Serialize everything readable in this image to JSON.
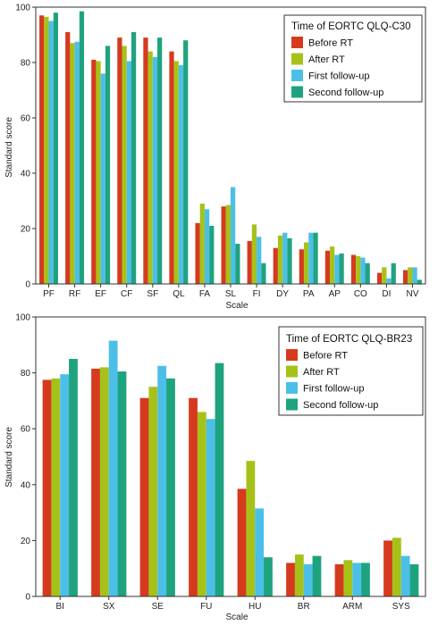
{
  "colors": {
    "before": "#d63a1e",
    "after": "#a6c21a",
    "first": "#4cbfe8",
    "second": "#1fa37f"
  },
  "chart_data": [
    {
      "type": "bar",
      "xlabel": "Scale",
      "ylabel": "Standard score",
      "ylim": [
        0,
        100
      ],
      "yticks": [
        0,
        20,
        40,
        60,
        80,
        100
      ],
      "legend_title": "Time of EORTC QLQ-C30",
      "legend_position": "top-right",
      "categories": [
        "PF",
        "RF",
        "EF",
        "CF",
        "SF",
        "QL",
        "FA",
        "SL",
        "FI",
        "DY",
        "PA",
        "AP",
        "CO",
        "DI",
        "NV"
      ],
      "series": [
        {
          "name": "Before RT",
          "color_key": "before",
          "values": [
            97,
            91,
            81,
            89,
            89,
            84,
            22,
            28,
            15.5,
            13,
            12.5,
            12,
            10.5,
            4,
            5
          ]
        },
        {
          "name": "After RT",
          "color_key": "after",
          "values": [
            96.5,
            87,
            80.5,
            86,
            84,
            80.5,
            29,
            28.5,
            21.5,
            17.5,
            15,
            13.5,
            10,
            6,
            6
          ]
        },
        {
          "name": "First follow-up",
          "color_key": "first",
          "values": [
            95,
            87.5,
            76,
            80.5,
            82,
            79,
            27,
            35,
            17,
            18.5,
            18.5,
            10.5,
            9.5,
            2,
            6
          ]
        },
        {
          "name": "Second follow-up",
          "color_key": "second",
          "values": [
            98,
            98.5,
            86,
            91,
            89,
            88,
            21,
            14.5,
            7.5,
            16.5,
            18.5,
            11,
            7.5,
            7.5,
            1.5
          ]
        }
      ]
    },
    {
      "type": "bar",
      "xlabel": "Scale",
      "ylabel": "Standard score",
      "ylim": [
        0,
        100
      ],
      "yticks": [
        0,
        20,
        40,
        60,
        80,
        100
      ],
      "legend_title": "Time of EORTC QLQ-BR23",
      "legend_position": "top-right",
      "categories": [
        "BI",
        "SX",
        "SE",
        "FU",
        "HU",
        "BR",
        "ARM",
        "SYS"
      ],
      "series": [
        {
          "name": "Before RT",
          "color_key": "before",
          "values": [
            77.5,
            81.5,
            71,
            71,
            38.5,
            12,
            11.5,
            20
          ]
        },
        {
          "name": "After RT",
          "color_key": "after",
          "values": [
            78,
            82,
            75,
            66,
            48.5,
            15,
            13,
            21
          ]
        },
        {
          "name": "First follow-up",
          "color_key": "first",
          "values": [
            79.5,
            91.5,
            82.5,
            63.5,
            31.5,
            11.5,
            12,
            14.5
          ]
        },
        {
          "name": "Second follow-up",
          "color_key": "second",
          "values": [
            85,
            80.5,
            78,
            83.5,
            14,
            14.5,
            12,
            11.5
          ]
        }
      ]
    }
  ]
}
